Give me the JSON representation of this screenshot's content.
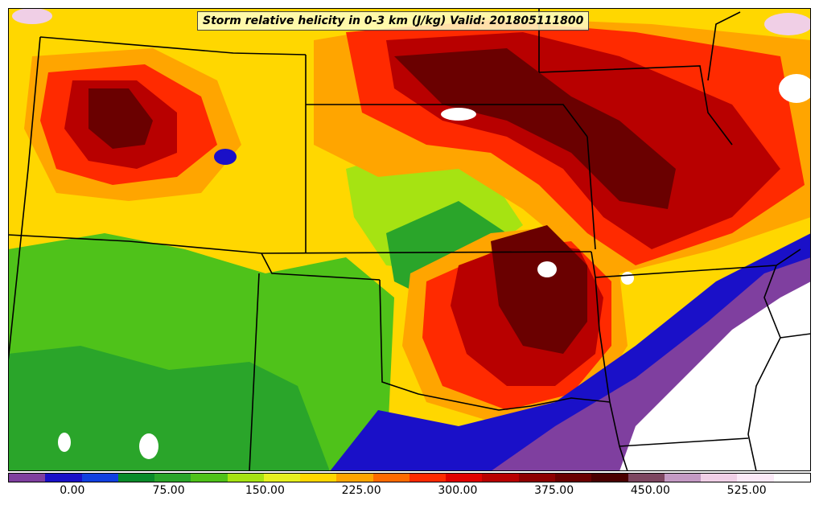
{
  "title": "Storm relative helicity in 0-3 km (J/kg) Valid: 201805111800",
  "colorbar": {
    "colors": [
      "#7f3f9f",
      "#1a10c8",
      "#1040e0",
      "#0a8a2a",
      "#2aa52a",
      "#4fc21a",
      "#a6e312",
      "#e6f020",
      "#ffd700",
      "#ffa500",
      "#ff6a00",
      "#ff2a00",
      "#e00000",
      "#b80000",
      "#8e0000",
      "#6a0000",
      "#4a0000",
      "#7d4660",
      "#c49ac4",
      "#f0cfe6",
      "#fbe9f7",
      "#ffffff"
    ],
    "tick_labels": [
      "0.00",
      "75.00",
      "150.00",
      "225.00",
      "300.00",
      "375.00",
      "450.00",
      "525.00"
    ],
    "range": [
      -50,
      575
    ]
  },
  "map": {
    "fields": [
      {
        "color": "#ffd700",
        "label": "bg"
      },
      {
        "color": "#4fc21a"
      },
      {
        "color": "#2aa52a"
      },
      {
        "color": "#a6e312"
      },
      {
        "color": "#ffa500"
      },
      {
        "color": "#ff2a00"
      },
      {
        "color": "#b80000"
      },
      {
        "color": "#6a0000"
      },
      {
        "color": "#1a10c8"
      },
      {
        "color": "#7f3f9f"
      },
      {
        "color": "#ffffff"
      }
    ]
  }
}
